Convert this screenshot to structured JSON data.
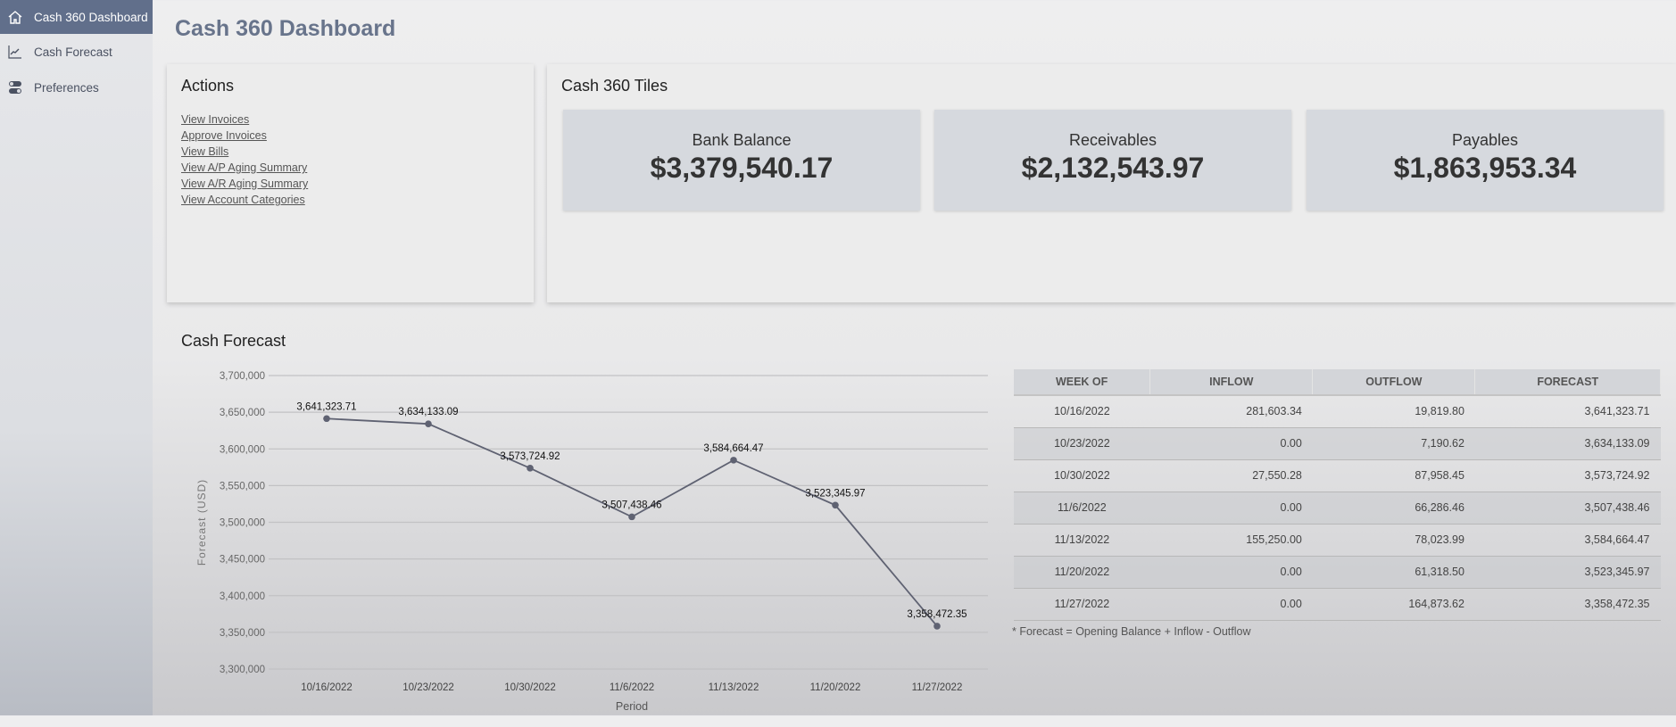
{
  "sidebar": {
    "items": [
      {
        "label": "Cash 360 Dashboard",
        "icon": "home-icon",
        "active": true
      },
      {
        "label": "Cash Forecast",
        "icon": "line-chart-icon"
      },
      {
        "label": "Preferences",
        "icon": "toggles-icon"
      }
    ]
  },
  "page_title": "Cash 360 Dashboard",
  "actions": {
    "title": "Actions",
    "links": [
      "View Invoices",
      "Approve Invoices",
      "View Bills",
      "View A/P Aging Summary",
      "View A/R Aging Summary",
      "View Account Categories"
    ]
  },
  "tiles": {
    "title": "Cash 360 Tiles",
    "items": [
      {
        "label": "Bank Balance",
        "value": "$3,379,540.17"
      },
      {
        "label": "Receivables",
        "value": "$2,132,543.97"
      },
      {
        "label": "Payables",
        "value": "$1,863,953.34"
      }
    ]
  },
  "forecast": {
    "title": "Cash Forecast",
    "note": "* Forecast = Opening Balance + Inflow - Outflow",
    "table": {
      "headers": [
        "WEEK OF",
        "INFLOW",
        "OUTFLOW",
        "FORECAST"
      ],
      "rows": [
        [
          "10/16/2022",
          "281,603.34",
          "19,819.80",
          "3,641,323.71"
        ],
        [
          "10/23/2022",
          "0.00",
          "7,190.62",
          "3,634,133.09"
        ],
        [
          "10/30/2022",
          "27,550.28",
          "87,958.45",
          "3,573,724.92"
        ],
        [
          "11/6/2022",
          "0.00",
          "66,286.46",
          "3,507,438.46"
        ],
        [
          "11/13/2022",
          "155,250.00",
          "78,023.99",
          "3,584,664.47"
        ],
        [
          "11/20/2022",
          "0.00",
          "61,318.50",
          "3,523,345.97"
        ],
        [
          "11/27/2022",
          "0.00",
          "164,873.62",
          "3,358,472.35"
        ]
      ]
    }
  },
  "chart_data": {
    "type": "line",
    "xlabel": "Period",
    "ylabel": "Forecast (USD)",
    "ylim": [
      3300000,
      3700000
    ],
    "yticks": [
      "3,300,000",
      "3,350,000",
      "3,400,000",
      "3,450,000",
      "3,500,000",
      "3,550,000",
      "3,600,000",
      "3,650,000",
      "3,700,000"
    ],
    "categories": [
      "10/16/2022",
      "10/23/2022",
      "10/30/2022",
      "11/6/2022",
      "11/13/2022",
      "11/20/2022",
      "11/27/2022"
    ],
    "values": [
      3641323.71,
      3634133.09,
      3573724.92,
      3507438.46,
      3584664.47,
      3523345.97,
      3358472.35
    ],
    "labels": [
      "3,641,323.71",
      "3,634,133.09",
      "3,573,724.92",
      "3,507,438.46",
      "3,584,664.47",
      "3,523,345.97",
      "3,358,472.35"
    ],
    "grid": true,
    "line_color": "#5f6272"
  }
}
